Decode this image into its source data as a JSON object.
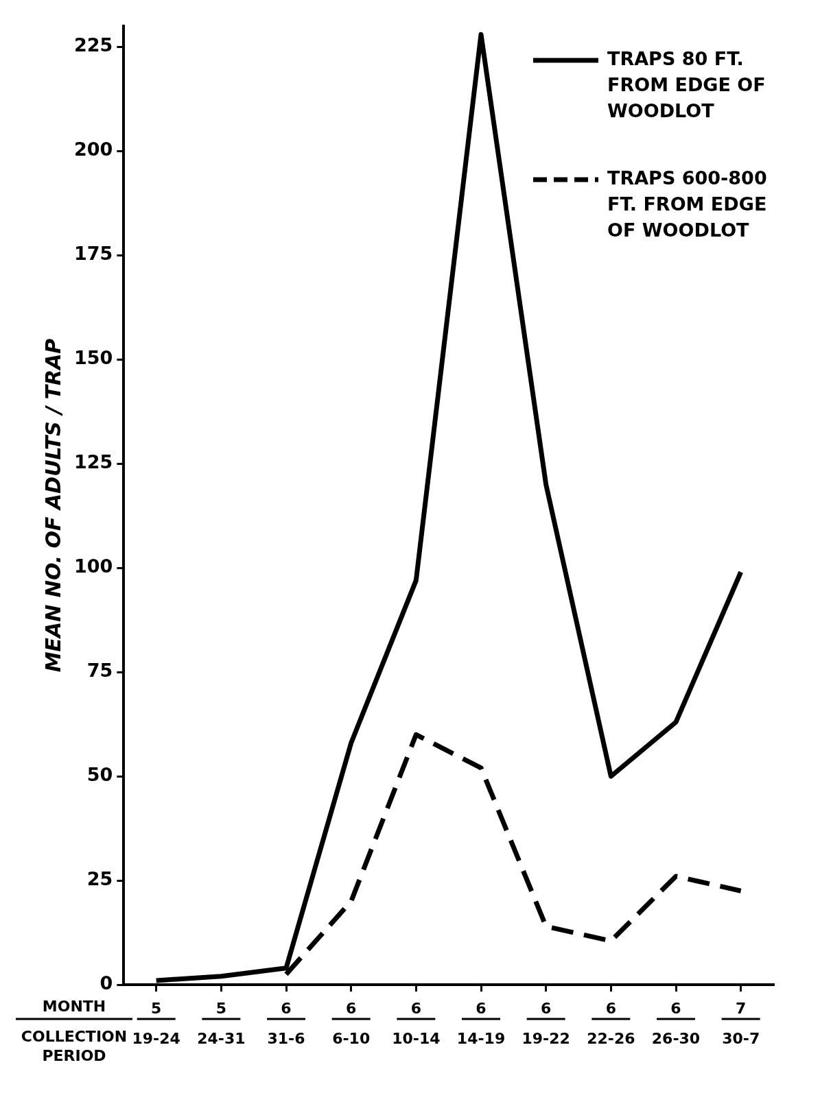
{
  "chart_data": {
    "type": "line",
    "ylabel": "MEAN NO. OF ADULTS / TRAP",
    "xlabel": "MONTH\nCOLLECTION PERIOD",
    "categories": [
      "5\n19-24",
      "5\n24-31",
      "6\n31-6",
      "6\n6-10",
      "6\n10-14",
      "6\n14-19",
      "6\n19-22",
      "6\n22-26",
      "6\n26-30",
      "7\n30-7"
    ],
    "series": [
      {
        "name": "TRAPS 80 FT. FROM EDGE OF WOODLOT",
        "color": "#000000",
        "line_style": "solid",
        "values": [
          1,
          2,
          4,
          58,
          97,
          228,
          120,
          50,
          63,
          99
        ]
      },
      {
        "name": "TRAPS 600-800 FT. FROM EDGE OF WOODLOT",
        "color": "#000000",
        "line_style": "dashed",
        "values": [
          null,
          null,
          2.5,
          20,
          60,
          52,
          14,
          10.5,
          26,
          22.5
        ]
      }
    ],
    "ylim": [
      0,
      230
    ],
    "yticks": [
      0,
      25,
      50,
      75,
      100,
      125,
      150,
      175,
      200,
      225
    ],
    "grid": false,
    "legend": "top right",
    "marker": "none"
  }
}
